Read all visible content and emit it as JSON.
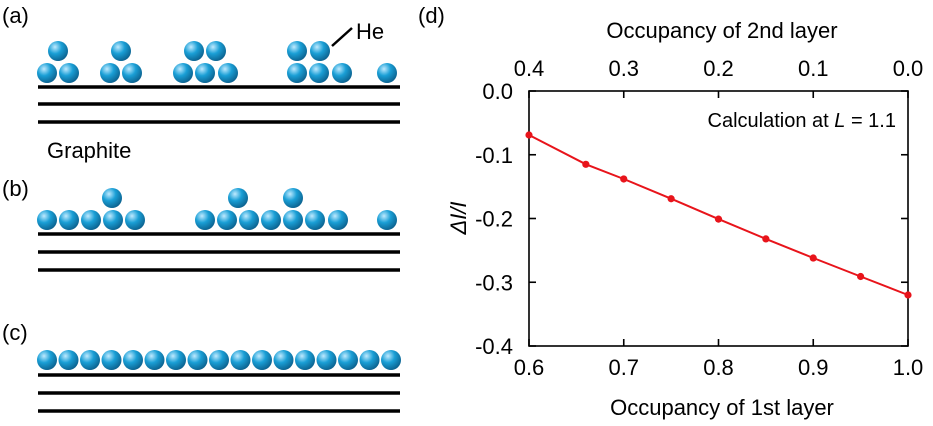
{
  "panels": {
    "a": {
      "label": "(a)"
    },
    "b": {
      "label": "(b)"
    },
    "c": {
      "label": "(c)"
    },
    "d": {
      "label": "(d)"
    }
  },
  "schematic": {
    "he_label": "He",
    "graphite_label": "Graphite",
    "atom_color": "#1a9fd6",
    "atom_highlight": "#bfeaff",
    "atom_shade": "#0b5f8c",
    "line_color": "#000000"
  },
  "chart_data": {
    "type": "line",
    "xlabel": "Occupancy of 1st layer",
    "ylabel": "ΔI/I",
    "x2label": "Occupancy of 2nd layer",
    "annotation": "Calculation at L = 1.1",
    "annotation_prefix": "Calculation at ",
    "annotation_var": "L",
    "annotation_suffix": " = 1.1",
    "xlim": [
      0.6,
      1.0
    ],
    "ylim": [
      -0.4,
      0.0
    ],
    "xticks": [
      "0.6",
      "0.7",
      "0.8",
      "0.9",
      "1.0"
    ],
    "x2ticks": [
      "0.4",
      "0.3",
      "0.2",
      "0.1",
      "0.0"
    ],
    "yticks": [
      "0.0",
      "-0.1",
      "-0.2",
      "-0.3",
      "-0.4"
    ],
    "series_color": "#e8141b",
    "series": [
      {
        "x": [
          0.6,
          0.66,
          0.7,
          0.75,
          0.8,
          0.85,
          0.9,
          0.95,
          1.0
        ],
        "y": [
          -0.069,
          -0.115,
          -0.138,
          -0.169,
          -0.201,
          -0.232,
          -0.262,
          -0.291,
          -0.32
        ]
      }
    ]
  }
}
